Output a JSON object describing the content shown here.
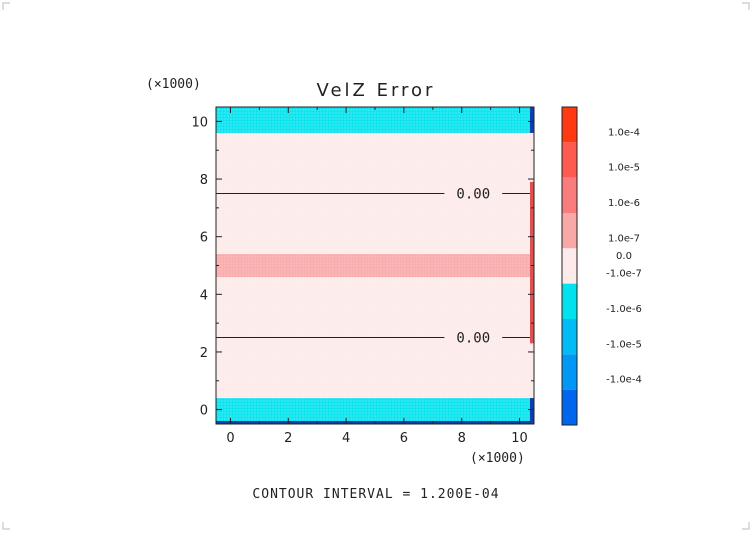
{
  "chart_data": {
    "type": "heatmap",
    "title": "VelZ Error",
    "x_multiplier": "(×1000)",
    "y_multiplier": "(×1000)",
    "xlim": [
      -0.5,
      10.5
    ],
    "ylim": [
      -0.5,
      10.5
    ],
    "x_ticks": [
      0,
      2,
      4,
      6,
      8,
      10
    ],
    "y_ticks": [
      0,
      2,
      4,
      6,
      8,
      10
    ],
    "x_tick_labels": [
      "0",
      "2",
      "4",
      "6",
      "8",
      "10"
    ],
    "y_tick_labels": [
      "0",
      "2",
      "4",
      "6",
      "8",
      "10"
    ],
    "bands": [
      {
        "y0": -0.5,
        "y1": 0.4,
        "level": "-1.0e-7 to -1.0e-6",
        "color": "#00e3ef"
      },
      {
        "y0": 0.4,
        "y1": 4.6,
        "level": "-1.0e-7 to 1.0e-7",
        "color": "#fdeaea"
      },
      {
        "y0": 4.6,
        "y1": 5.4,
        "level": "1.0e-6 to 1.0e-7",
        "color": "#f9a8a8"
      },
      {
        "y0": 5.4,
        "y1": 9.6,
        "level": "-1.0e-7 to 1.0e-7",
        "color": "#fdeaea"
      },
      {
        "y0": 9.6,
        "y1": 10.5,
        "level": "-1.0e-7 to -1.0e-6",
        "color": "#00e3ef"
      }
    ],
    "contour_lines": [
      {
        "y": 7.5,
        "label": "0.00"
      },
      {
        "y": 2.5,
        "label": "0.00"
      }
    ],
    "colorbar": {
      "colors": [
        "#ff3a12",
        "#ff5a50",
        "#fa7c7c",
        "#f9a8a8",
        "#fdeaea",
        "#00e3ef",
        "#00bcf6",
        "#0098f4",
        "#0066ee"
      ],
      "labels": [
        "1.0e-4",
        "1.0e-5",
        "1.0e-6",
        "1.0e-7",
        "0.0",
        "-1.0e-7",
        "-1.0e-6",
        "-1.0e-5",
        "-1.0e-4"
      ]
    },
    "footer": "CONTOUR INTERVAL = 1.200E-04"
  }
}
